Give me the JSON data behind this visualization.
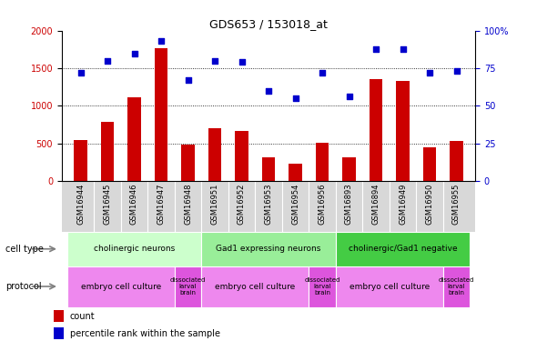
{
  "title": "GDS653 / 153018_at",
  "samples": [
    "GSM16944",
    "GSM16945",
    "GSM16946",
    "GSM16947",
    "GSM16948",
    "GSM16951",
    "GSM16952",
    "GSM16953",
    "GSM16954",
    "GSM16956",
    "GSM16893",
    "GSM16894",
    "GSM16949",
    "GSM16950",
    "GSM16955"
  ],
  "counts": [
    540,
    790,
    1110,
    1770,
    480,
    700,
    660,
    310,
    230,
    510,
    310,
    1350,
    1330,
    450,
    530
  ],
  "percentile": [
    72,
    80,
    85,
    93,
    67,
    80,
    79,
    60,
    55,
    72,
    56,
    88,
    88,
    72,
    73
  ],
  "ylim_left": [
    0,
    2000
  ],
  "ylim_right": [
    0,
    100
  ],
  "yticks_left": [
    0,
    500,
    1000,
    1500,
    2000
  ],
  "yticks_right": [
    0,
    25,
    50,
    75,
    100
  ],
  "bar_color": "#cc0000",
  "scatter_color": "#0000cc",
  "cell_type_groups": [
    {
      "label": "cholinergic neurons",
      "start": 0,
      "end": 4,
      "color": "#ccffcc"
    },
    {
      "label": "Gad1 expressing neurons",
      "start": 5,
      "end": 9,
      "color": "#99ee99"
    },
    {
      "label": "cholinergic/Gad1 negative",
      "start": 10,
      "end": 14,
      "color": "#44cc44"
    }
  ],
  "protocol_groups": [
    {
      "label": "embryo cell culture",
      "start": 0,
      "end": 3,
      "color": "#ee88ee"
    },
    {
      "label": "dissociated\nlarval\nbrain",
      "start": 4,
      "end": 4,
      "color": "#dd55dd"
    },
    {
      "label": "embryo cell culture",
      "start": 5,
      "end": 8,
      "color": "#ee88ee"
    },
    {
      "label": "dissociated\nlarval\nbrain",
      "start": 9,
      "end": 9,
      "color": "#dd55dd"
    },
    {
      "label": "embryo cell culture",
      "start": 10,
      "end": 13,
      "color": "#ee88ee"
    },
    {
      "label": "dissociated\nlarval\nbrain",
      "start": 14,
      "end": 14,
      "color": "#dd55dd"
    }
  ],
  "gridline_y": [
    500,
    1000,
    1500
  ],
  "bar_width": 0.5,
  "scatter_marker": "s",
  "scatter_size": 18,
  "left_label_color": "#cc0000",
  "right_label_color": "#0000cc",
  "tick_fontsize": 7,
  "sample_fontsize": 6,
  "annotation_fontsize": 6.5,
  "title_fontsize": 9
}
